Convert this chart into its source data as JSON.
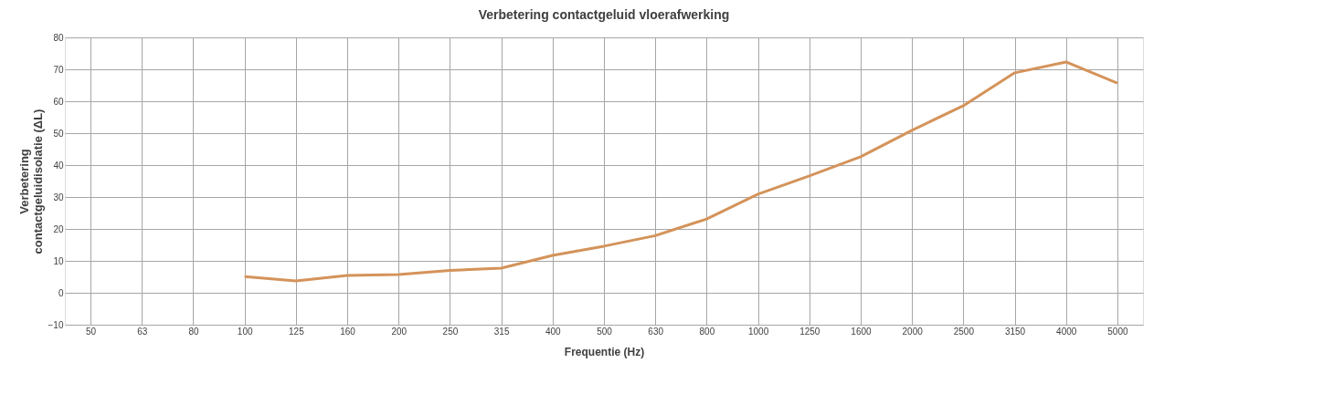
{
  "chart_data": {
    "type": "line",
    "title": "Verbetering contactgeluid vloerafwerking",
    "xlabel": "Frequentie (Hz)",
    "ylabel": "Verbetering contactgeluidisolatie (ΔL)",
    "categories": [
      "50",
      "63",
      "80",
      "100",
      "125",
      "160",
      "200",
      "250",
      "315",
      "400",
      "500",
      "630",
      "800",
      "1000",
      "1250",
      "1600",
      "2000",
      "2500",
      "3150",
      "4000",
      "5000"
    ],
    "series": [
      {
        "color": "#d4935a",
        "values": [
          null,
          null,
          null,
          5.1,
          3.7,
          5.4,
          5.7,
          7.0,
          7.7,
          11.7,
          14.6,
          17.9,
          23.1,
          30.9,
          36.6,
          42.6,
          50.9,
          58.6,
          68.9,
          72.3,
          65.7
        ]
      }
    ],
    "ylim": [
      -10,
      80
    ],
    "yticks": [
      -10,
      0,
      10,
      20,
      30,
      40,
      50,
      60,
      70,
      80
    ],
    "grid": true,
    "marker": "none",
    "line_style": "solid"
  }
}
